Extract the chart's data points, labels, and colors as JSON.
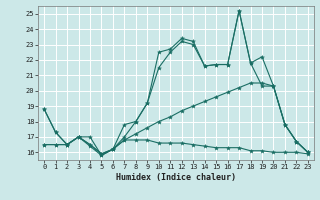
{
  "xlabel": "Humidex (Indice chaleur)",
  "bg_color": "#cce8e8",
  "grid_color": "#ffffff",
  "line_color": "#1a6e64",
  "xlim": [
    -0.5,
    23.5
  ],
  "ylim": [
    15.5,
    25.5
  ],
  "yticks": [
    16,
    17,
    18,
    19,
    20,
    21,
    22,
    23,
    24,
    25
  ],
  "xticks": [
    0,
    1,
    2,
    3,
    4,
    5,
    6,
    7,
    8,
    9,
    10,
    11,
    12,
    13,
    14,
    15,
    16,
    17,
    18,
    19,
    20,
    21,
    22,
    23
  ],
  "series": [
    {
      "x": [
        0,
        1,
        2,
        3,
        4,
        5,
        6,
        7,
        8,
        9,
        10,
        11,
        12,
        13,
        14,
        15,
        16,
        17,
        18,
        19,
        20,
        21,
        22,
        23
      ],
      "y": [
        18.8,
        17.3,
        16.5,
        17.0,
        17.0,
        15.8,
        16.2,
        17.8,
        18.0,
        19.2,
        22.5,
        22.7,
        23.4,
        23.2,
        21.6,
        21.7,
        21.7,
        25.2,
        21.8,
        22.2,
        20.3,
        17.8,
        16.7,
        16.0
      ]
    },
    {
      "x": [
        0,
        1,
        2,
        3,
        4,
        5,
        6,
        7,
        8,
        9,
        10,
        11,
        12,
        13,
        14,
        15,
        16,
        17,
        18,
        19,
        20,
        21,
        22,
        23
      ],
      "y": [
        18.8,
        17.3,
        16.5,
        17.0,
        16.4,
        15.8,
        16.2,
        17.0,
        18.0,
        19.2,
        21.5,
        22.5,
        23.2,
        23.0,
        21.6,
        21.7,
        21.7,
        25.2,
        21.8,
        20.3,
        20.3,
        17.8,
        16.7,
        16.0
      ]
    },
    {
      "x": [
        0,
        1,
        2,
        3,
        4,
        5,
        6,
        7,
        8,
        9,
        10,
        11,
        12,
        13,
        14,
        15,
        16,
        17,
        18,
        19,
        20,
        21,
        22,
        23
      ],
      "y": [
        16.5,
        16.5,
        16.5,
        17.0,
        16.5,
        15.9,
        16.2,
        16.8,
        16.8,
        16.8,
        16.6,
        16.6,
        16.6,
        16.5,
        16.4,
        16.3,
        16.3,
        16.3,
        16.1,
        16.1,
        16.0,
        16.0,
        16.0,
        15.9
      ]
    },
    {
      "x": [
        0,
        1,
        2,
        3,
        4,
        5,
        6,
        7,
        8,
        9,
        10,
        11,
        12,
        13,
        14,
        15,
        16,
        17,
        18,
        19,
        20,
        21,
        22,
        23
      ],
      "y": [
        16.5,
        16.5,
        16.5,
        17.0,
        16.5,
        15.9,
        16.2,
        16.8,
        17.2,
        17.6,
        18.0,
        18.3,
        18.7,
        19.0,
        19.3,
        19.6,
        19.9,
        20.2,
        20.5,
        20.5,
        20.3,
        17.8,
        16.7,
        16.0
      ]
    }
  ]
}
